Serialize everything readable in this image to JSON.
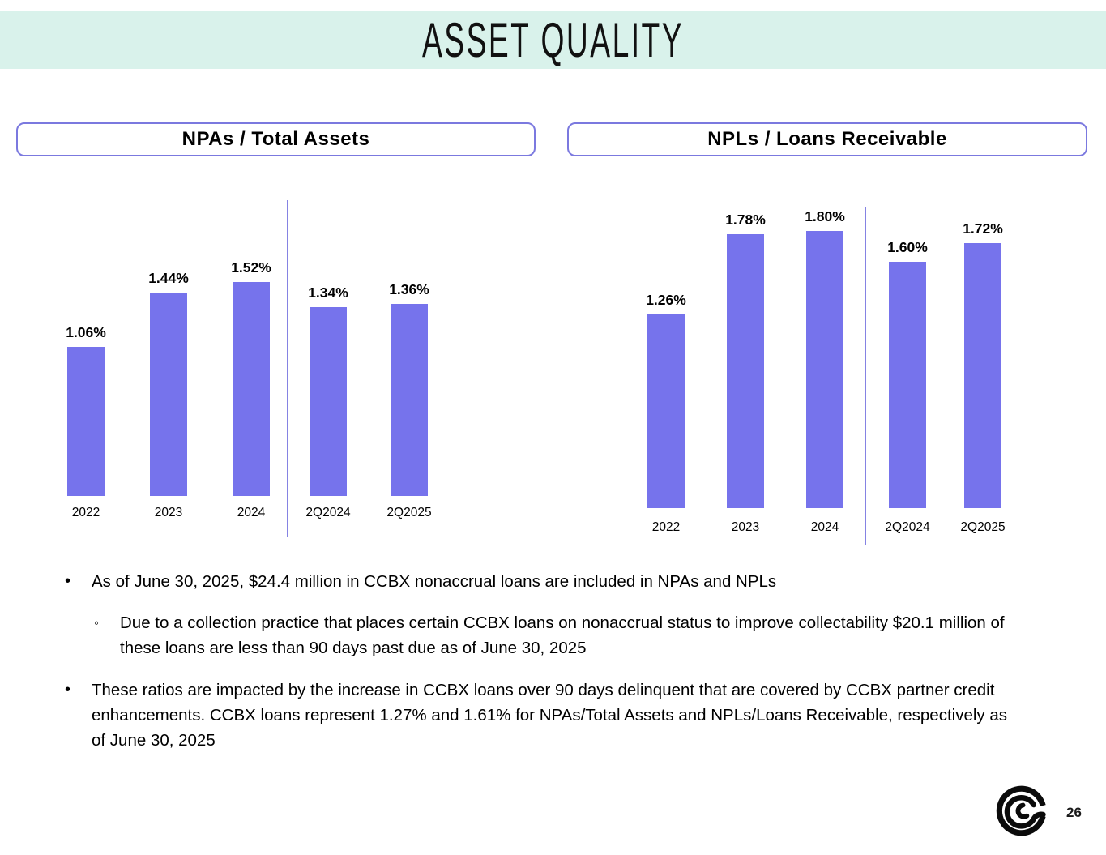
{
  "title": "ASSET QUALITY",
  "page_number": "26",
  "colors": {
    "banner_bg": "#d9f2eb",
    "bar": "#7673ec",
    "separator": "#8583e3",
    "box_border": "#7b79df",
    "text": "#000000"
  },
  "logo": {
    "name": "coastal-wave-logo"
  },
  "chart_data": [
    {
      "type": "bar",
      "title": "NPAs / Total Assets",
      "categories": [
        "2022",
        "2023",
        "2024",
        "2Q2024",
        "2Q2025"
      ],
      "values": [
        1.06,
        1.44,
        1.52,
        1.34,
        1.36
      ],
      "data_labels": [
        "1.06%",
        "1.44%",
        "1.52%",
        "1.34%",
        "1.36%"
      ],
      "unit": "%",
      "ylim": [
        0,
        2.1
      ],
      "axis_ticks_visible": false,
      "grid": false,
      "group_separator_after_index": 2
    },
    {
      "type": "bar",
      "title": "NPLs / Loans Receivable",
      "categories": [
        "2022",
        "2023",
        "2024",
        "2Q2024",
        "2Q2025"
      ],
      "values": [
        1.26,
        1.78,
        1.8,
        1.6,
        1.72
      ],
      "data_labels": [
        "1.26%",
        "1.78%",
        "1.80%",
        "1.60%",
        "1.72%"
      ],
      "unit": "%",
      "ylim": [
        0,
        2.1
      ],
      "axis_ticks_visible": false,
      "grid": false,
      "group_separator_after_index": 2
    }
  ],
  "bullets": [
    {
      "level": 1,
      "marker": "•",
      "text": "As of June 30, 2025, $24.4 million in CCBX nonaccrual loans are included in NPAs and NPLs"
    },
    {
      "level": 2,
      "marker": "◦",
      "text": "Due to a collection practice that places certain CCBX loans on nonaccrual status to improve collectability $20.1 million of these loans are less than 90 days past due as of June 30, 2025"
    },
    {
      "level": 1,
      "marker": "•",
      "text": "These ratios are impacted by the increase in CCBX loans over 90 days delinquent that are covered by CCBX partner credit enhancements. CCBX loans represent 1.27% and 1.61% for NPAs/Total Assets and NPLs/Loans Receivable, respectively as of June 30, 2025"
    }
  ]
}
